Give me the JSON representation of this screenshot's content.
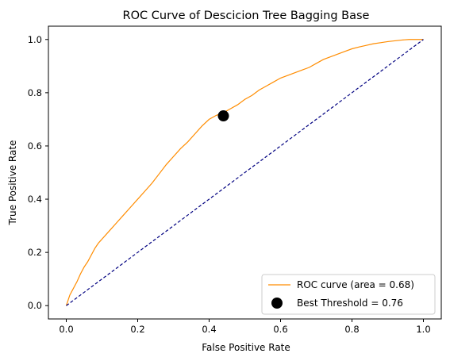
{
  "chart_data": {
    "type": "line",
    "title": "ROC Curve of Descicion Tree Bagging Base",
    "xlabel": "False Positive Rate",
    "ylabel": "True Positive Rate",
    "xlim": [
      -0.05,
      1.05
    ],
    "ylim": [
      -0.05,
      1.05
    ],
    "xticks": [
      {
        "value": 0.0,
        "label": "0.0"
      },
      {
        "value": 0.2,
        "label": "0.2"
      },
      {
        "value": 0.4,
        "label": "0.4"
      },
      {
        "value": 0.6,
        "label": "0.6"
      },
      {
        "value": 0.8,
        "label": "0.8"
      },
      {
        "value": 1.0,
        "label": "1.0"
      }
    ],
    "yticks": [
      {
        "value": 0.0,
        "label": "0.0"
      },
      {
        "value": 0.2,
        "label": "0.2"
      },
      {
        "value": 0.4,
        "label": "0.4"
      },
      {
        "value": 0.6,
        "label": "0.6"
      },
      {
        "value": 0.8,
        "label": "0.8"
      },
      {
        "value": 1.0,
        "label": "1.0"
      }
    ],
    "grid": false,
    "legend_position": "lower right",
    "series": [
      {
        "name": "ROC curve (area = 0.68)",
        "color": "#ff8c00",
        "style": "solid",
        "x": [
          0.0,
          0.01,
          0.02,
          0.03,
          0.04,
          0.05,
          0.06,
          0.07,
          0.08,
          0.09,
          0.1,
          0.12,
          0.14,
          0.16,
          0.18,
          0.2,
          0.22,
          0.24,
          0.26,
          0.28,
          0.3,
          0.32,
          0.34,
          0.36,
          0.38,
          0.4,
          0.42,
          0.44,
          0.46,
          0.48,
          0.5,
          0.52,
          0.54,
          0.56,
          0.58,
          0.6,
          0.62,
          0.64,
          0.66,
          0.68,
          0.7,
          0.72,
          0.74,
          0.76,
          0.78,
          0.8,
          0.82,
          0.84,
          0.86,
          0.88,
          0.9,
          0.92,
          0.94,
          0.96,
          0.98,
          1.0
        ],
        "y": [
          0.0,
          0.04,
          0.065,
          0.09,
          0.12,
          0.145,
          0.165,
          0.19,
          0.215,
          0.235,
          0.25,
          0.28,
          0.31,
          0.34,
          0.37,
          0.4,
          0.43,
          0.46,
          0.495,
          0.53,
          0.56,
          0.59,
          0.615,
          0.645,
          0.675,
          0.7,
          0.715,
          0.725,
          0.74,
          0.755,
          0.775,
          0.79,
          0.81,
          0.825,
          0.84,
          0.855,
          0.865,
          0.875,
          0.885,
          0.895,
          0.91,
          0.925,
          0.935,
          0.945,
          0.955,
          0.965,
          0.972,
          0.978,
          0.984,
          0.988,
          0.992,
          0.995,
          0.998,
          1.0,
          1.0,
          1.0
        ]
      },
      {
        "name": "",
        "color": "#000080",
        "style": "dashed",
        "x": [
          0.0,
          1.0
        ],
        "y": [
          0.0,
          1.0
        ]
      }
    ],
    "markers": [
      {
        "name": "Best Threshold = 0.76",
        "x": 0.44,
        "y": 0.713,
        "color": "#000000"
      }
    ],
    "legend": [
      {
        "label": "ROC curve (area = 0.68)",
        "kind": "line",
        "color": "#ff8c00"
      },
      {
        "label": "Best Threshold = 0.76",
        "kind": "marker",
        "color": "#000000"
      }
    ]
  }
}
